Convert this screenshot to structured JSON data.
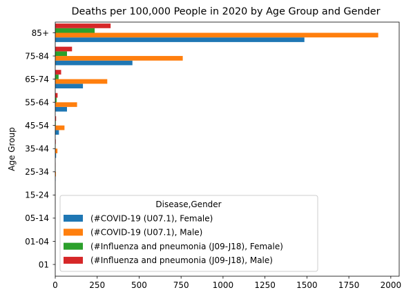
{
  "chart_data": {
    "type": "bar",
    "orientation": "horizontal",
    "title": "Deaths per 100,000 People in 2020 by Age Group and Gender",
    "xlabel": "",
    "ylabel": "Age Group",
    "xlim": [
      0,
      2050
    ],
    "xticks": [
      0,
      250,
      500,
      750,
      1000,
      1250,
      1500,
      1750,
      2000
    ],
    "grid": false,
    "legend_position": "lower-left",
    "legend_title": "Disease,Gender",
    "categories": [
      "01",
      "01-04",
      "05-14",
      "15-24",
      "25-34",
      "35-44",
      "45-54",
      "55-64",
      "65-74",
      "75-84",
      "85+"
    ],
    "series": [
      {
        "name": "(#COVID-19 (U07.1), Female)",
        "color": "#1f77b4",
        "values": [
          0,
          0,
          0,
          0.3,
          2,
          5,
          22,
          70,
          165,
          460,
          1485
        ]
      },
      {
        "name": "(#COVID-19 (U07.1), Male)",
        "color": "#ff7f0e",
        "values": [
          0,
          0,
          0,
          0.7,
          4,
          13,
          55,
          130,
          310,
          760,
          1925
        ]
      },
      {
        "name": "(#Influenza and pneumonia (J09-J18), Female)",
        "color": "#2ca02c",
        "values": [
          0,
          0,
          0,
          0.2,
          0.8,
          2,
          3,
          8,
          20,
          70,
          235
        ]
      },
      {
        "name": "(#Influenza and pneumonia (J09-J18), Male)",
        "color": "#d62728",
        "values": [
          0,
          0,
          0,
          0.3,
          1,
          3,
          5,
          14,
          35,
          100,
          330
        ]
      }
    ]
  }
}
